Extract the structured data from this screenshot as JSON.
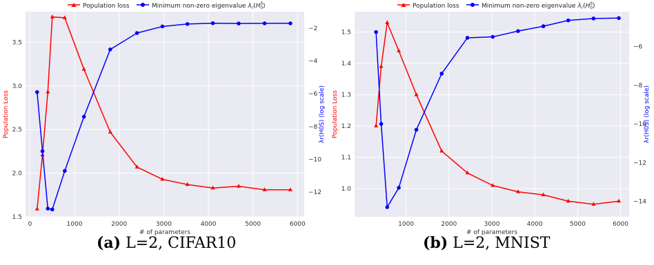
{
  "chart_data": [
    {
      "type": "line",
      "panel": "a",
      "caption": {
        "tag": "(a)",
        "text": "L=2, CIFAR10"
      },
      "xlabel": "# of parameters",
      "ylabel_left": "Population Loss",
      "ylabel_right": "λr(H0S) (log scale)",
      "xlim": [
        -100,
        6150
      ],
      "ylim_left": [
        1.5,
        3.85
      ],
      "ylim_right": [
        -13.5,
        -1
      ],
      "xticks": [
        0,
        1000,
        2000,
        3000,
        4000,
        5000,
        6000
      ],
      "yticks_left": [
        1.5,
        2.0,
        2.5,
        3.0,
        3.5
      ],
      "yticks_right": [
        -2,
        -4,
        -6,
        -8,
        -10,
        -12
      ],
      "grid": true,
      "legend_placement": "top",
      "series": [
        {
          "name": "Population loss",
          "axis": "left",
          "color": "#ff0000",
          "marker": "triangle",
          "x": [
            160,
            280,
            400,
            500,
            780,
            1210,
            1800,
            2400,
            2970,
            3530,
            4100,
            4680,
            5260,
            5840
          ],
          "y": [
            1.59,
            2.21,
            2.93,
            3.79,
            3.78,
            3.19,
            2.47,
            2.07,
            1.93,
            1.87,
            1.83,
            1.85,
            1.81,
            1.81
          ]
        },
        {
          "name": "Minimum non-zero eigenvalue λr(H0S)",
          "axis": "right",
          "color": "#0000ff",
          "marker": "circle",
          "x": [
            160,
            280,
            400,
            500,
            780,
            1210,
            1800,
            2400,
            2970,
            3530,
            4100,
            4680,
            5260,
            5840
          ],
          "y": [
            -5.9,
            -9.5,
            -13.0,
            -13.05,
            -10.7,
            -7.4,
            -3.3,
            -2.3,
            -1.9,
            -1.75,
            -1.7,
            -1.72,
            -1.71,
            -1.71
          ]
        }
      ]
    },
    {
      "type": "line",
      "panel": "b",
      "caption": {
        "tag": "(b)",
        "text": "L=2, MNIST"
      },
      "xlabel": "# of parameters",
      "ylabel_left": "Population Loss",
      "ylabel_right": "λr(H0S) (log scale)",
      "xlim": [
        -200,
        6200
      ],
      "ylim_left": [
        0.91,
        1.565
      ],
      "ylim_right": [
        -14.8,
        -4.2
      ],
      "xticks": [
        1000,
        2000,
        3000,
        4000,
        5000,
        6000
      ],
      "yticks_left": [
        1.0,
        1.1,
        1.2,
        1.3,
        1.4,
        1.5
      ],
      "yticks_right": [
        -6,
        -8,
        -10,
        -12,
        -14
      ],
      "grid": true,
      "legend_placement": "top",
      "series": [
        {
          "name": "Population loss",
          "axis": "left",
          "color": "#ff0000",
          "marker": "triangle",
          "x": [
            300,
            420,
            560,
            830,
            1240,
            1830,
            2430,
            3020,
            3610,
            4200,
            4780,
            5370,
            5960
          ],
          "y": [
            1.2,
            1.39,
            1.53,
            1.44,
            1.3,
            1.12,
            1.05,
            1.01,
            0.99,
            0.98,
            0.96,
            0.95,
            0.96
          ]
        },
        {
          "name": "Minimum non-zero eigenvalue λr(H0S)",
          "axis": "right",
          "color": "#0000ff",
          "marker": "circle",
          "x": [
            300,
            420,
            560,
            830,
            1240,
            1830,
            2430,
            3020,
            3610,
            4200,
            4780,
            5370,
            5960
          ],
          "y": [
            -5.25,
            -10.0,
            -14.3,
            -13.3,
            -10.3,
            -7.4,
            -5.55,
            -5.5,
            -5.2,
            -4.95,
            -4.65,
            -4.55,
            -4.53
          ]
        }
      ]
    }
  ]
}
